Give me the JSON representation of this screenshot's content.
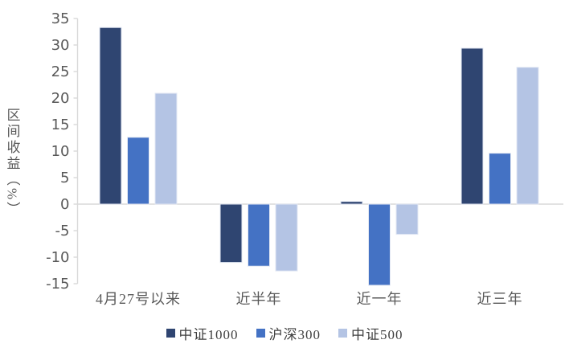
{
  "chart_data": {
    "type": "bar",
    "title": "",
    "ylabel": "区间收益（%）",
    "categories": [
      "4月27号以来",
      "近半年",
      "近一年",
      "近三年"
    ],
    "series": [
      {
        "name": "中证1000",
        "color": "#2F4571",
        "values": [
          33.3,
          -11.0,
          0.5,
          29.4
        ]
      },
      {
        "name": "沪深300",
        "color": "#4472C4",
        "values": [
          12.6,
          -11.7,
          -15.3,
          9.6
        ]
      },
      {
        "name": "中证500",
        "color": "#B4C4E4",
        "values": [
          20.9,
          -12.6,
          -5.7,
          25.8
        ]
      }
    ],
    "ylim": [
      -15,
      35
    ],
    "yticks": [
      35,
      30,
      25,
      20,
      15,
      10,
      5,
      0,
      -5,
      -10,
      -15
    ],
    "grid": false,
    "legend_position": "bottom"
  },
  "colors": {
    "axis_line": "#D9D9D9",
    "bar_border": "#E3E8F3",
    "tick_text": "#595959",
    "category_text": "#595959",
    "legend_text": "#3F3F3F",
    "background": "#FFFFFF"
  }
}
